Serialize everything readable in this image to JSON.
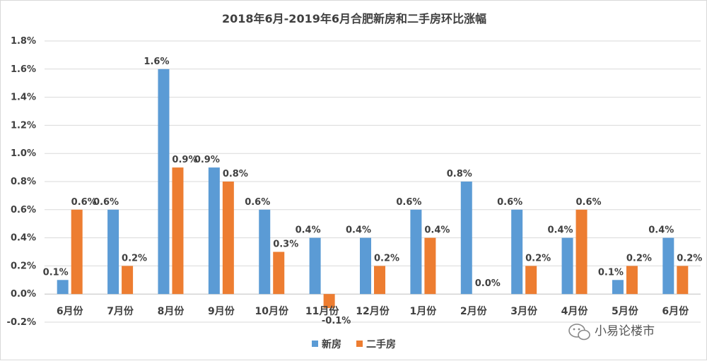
{
  "chart_data": {
    "type": "bar",
    "title": "2018年6月-2019年6月合肥新房和二手房环比涨幅",
    "categories": [
      "6月份",
      "7月份",
      "8月份",
      "9月份",
      "10月份",
      "11月份",
      "12月份",
      "1月份",
      "2月份",
      "3月份",
      "4月份",
      "5月份",
      "6月份"
    ],
    "series": [
      {
        "name": "新房",
        "color": "#5b9bd5",
        "values": [
          0.1,
          0.6,
          1.6,
          0.9,
          0.6,
          0.4,
          0.4,
          0.6,
          0.8,
          0.6,
          0.4,
          0.1,
          0.4
        ],
        "labels": [
          "0.1%",
          "0.6%",
          "1.6%",
          "0.9%",
          "0.6%",
          "0.4%",
          "0.4%",
          "0.6%",
          "0.8%",
          "0.6%",
          "0.4%",
          "0.1%",
          "0.4%"
        ]
      },
      {
        "name": "二手房",
        "color": "#ed7d31",
        "values": [
          0.6,
          0.2,
          0.9,
          0.8,
          0.3,
          -0.1,
          0.2,
          0.4,
          0.0,
          0.2,
          0.6,
          0.2,
          0.2
        ],
        "labels": [
          "0.6%",
          "0.2%",
          "0.9%",
          "0.8%",
          "0.3%",
          "-0.1%",
          "0.2%",
          "0.4%",
          "0.0%",
          "0.2%",
          "0.6%",
          "0.2%",
          "0.2%"
        ]
      }
    ],
    "ylim": [
      -0.2,
      1.8
    ],
    "yticks": [
      -0.2,
      0.0,
      0.2,
      0.4,
      0.6,
      0.8,
      1.0,
      1.2,
      1.4,
      1.6,
      1.8
    ],
    "ytick_labels": [
      "-0.2%",
      "0.0%",
      "0.2%",
      "0.4%",
      "0.6%",
      "0.8%",
      "1.0%",
      "1.2%",
      "1.4%",
      "1.6%",
      "1.8%"
    ],
    "grid": true,
    "legend": "bottom-center"
  },
  "watermark": {
    "text": "小易论楼市",
    "icon": "wechat-icon"
  }
}
